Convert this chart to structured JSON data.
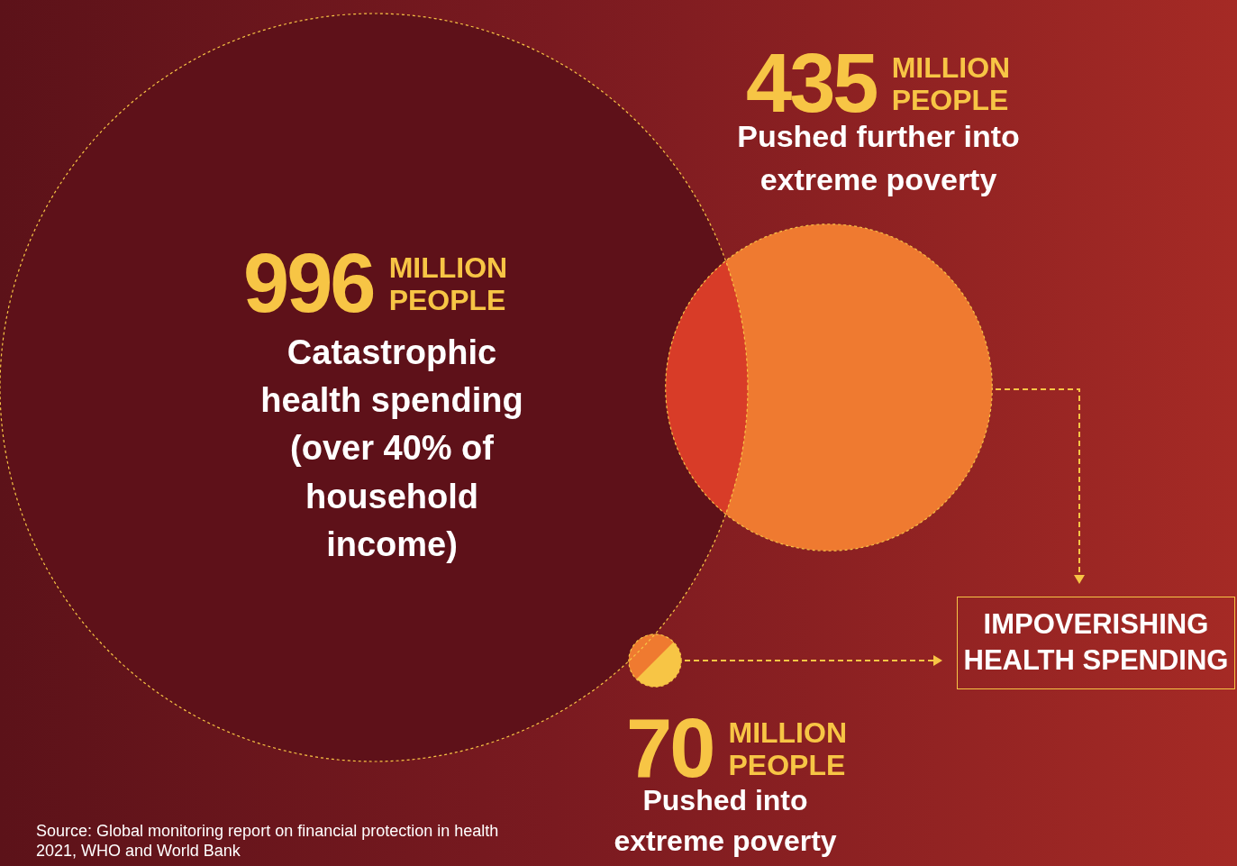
{
  "chart_data": {
    "type": "other",
    "categories": [
      "Catastrophic health spending (over 40% of household income)",
      "Pushed further into extreme poverty",
      "Pushed into extreme poverty"
    ],
    "values": [
      996,
      435,
      70
    ],
    "value_labels": [
      "996 MILLION PEOPLE",
      "435 MILLION PEOPLE",
      "70 MILLION PEOPLE"
    ],
    "colors": [
      "#5e1119",
      "#ef7a30",
      "#f7c545"
    ],
    "annotations": [
      "IMPOVERISHING HEALTH SPENDING",
      "Source: Global monitoring report on financial protection in health 2021, WHO and World Bank"
    ]
  }
}
